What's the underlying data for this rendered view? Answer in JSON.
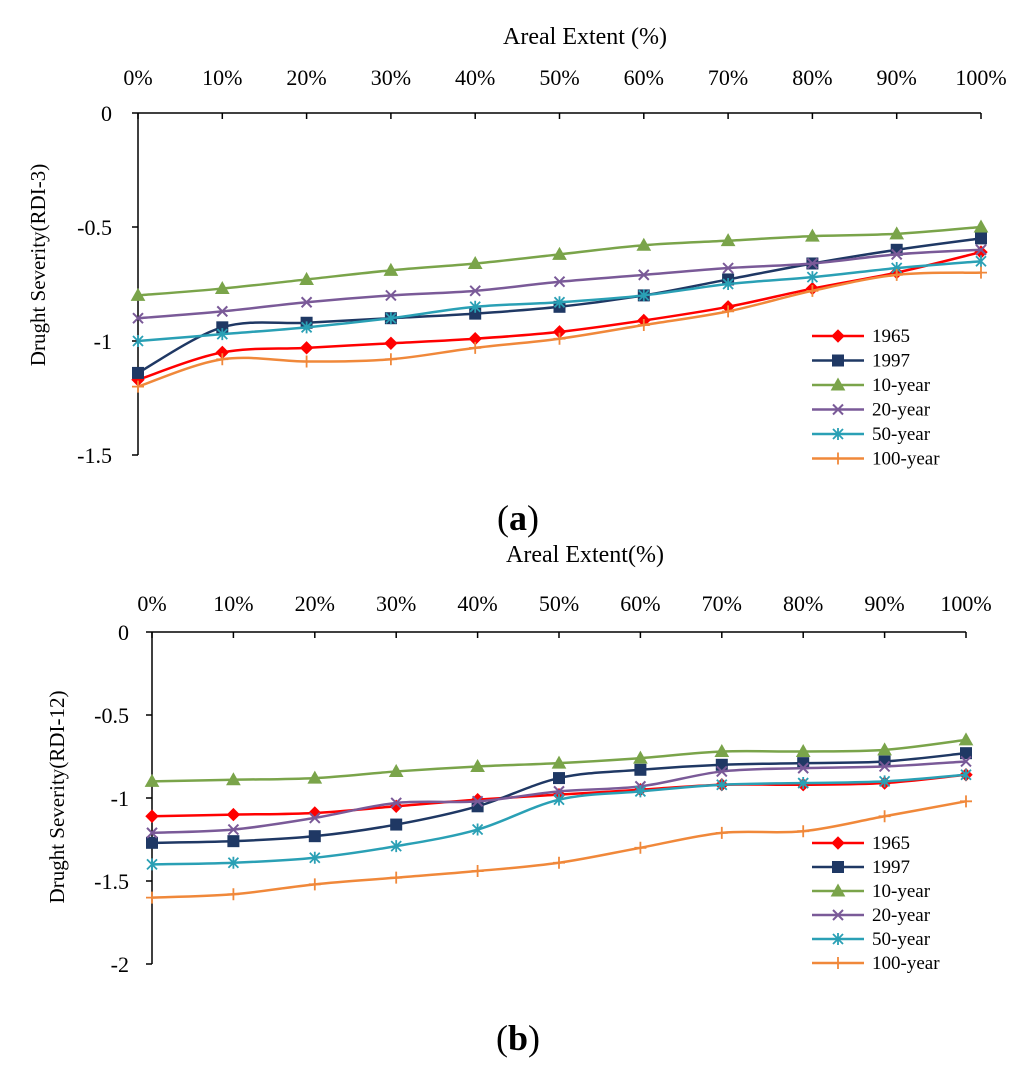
{
  "chart_data": [
    {
      "type": "line",
      "panel_label": "a",
      "title": "",
      "xlabel": "Areal Extent (%)",
      "ylabel": "Drught Severity(RDI-3)",
      "x_axis_position": "top",
      "categories": [
        "0%",
        "10%",
        "20%",
        "30%",
        "40%",
        "50%",
        "60%",
        "70%",
        "80%",
        "90%",
        "100%"
      ],
      "yticks": [
        "0",
        "-0.5",
        "-1",
        "-1.5"
      ],
      "ylim": [
        -1.5,
        0
      ],
      "grid": false,
      "legend_position": "bottom-right",
      "series": [
        {
          "name": "1965",
          "color": "#ff0000",
          "marker": "diamond",
          "values": [
            -1.17,
            -1.05,
            -1.03,
            -1.01,
            -0.99,
            -0.96,
            -0.91,
            -0.85,
            -0.77,
            -0.7,
            -0.61
          ]
        },
        {
          "name": "1997",
          "color": "#1f3864",
          "marker": "square",
          "values": [
            -1.14,
            -0.94,
            -0.92,
            -0.9,
            -0.88,
            -0.85,
            -0.8,
            -0.73,
            -0.66,
            -0.6,
            -0.55
          ]
        },
        {
          "name": "10-year",
          "color": "#7aa44a",
          "marker": "triangle",
          "values": [
            -0.8,
            -0.77,
            -0.73,
            -0.69,
            -0.66,
            -0.62,
            -0.58,
            -0.56,
            -0.54,
            -0.53,
            -0.5
          ]
        },
        {
          "name": "20-year",
          "color": "#7a5a98",
          "marker": "x",
          "values": [
            -0.9,
            -0.87,
            -0.83,
            -0.8,
            -0.78,
            -0.74,
            -0.71,
            -0.68,
            -0.66,
            -0.62,
            -0.6
          ]
        },
        {
          "name": "50-year",
          "color": "#2aa0b5",
          "marker": "asterisk",
          "values": [
            -1.0,
            -0.97,
            -0.94,
            -0.9,
            -0.85,
            -0.83,
            -0.8,
            -0.75,
            -0.72,
            -0.68,
            -0.65
          ]
        },
        {
          "name": "100-year",
          "color": "#f0883a",
          "marker": "plus",
          "values": [
            -1.2,
            -1.08,
            -1.09,
            -1.08,
            -1.03,
            -0.99,
            -0.93,
            -0.87,
            -0.78,
            -0.71,
            -0.7
          ]
        }
      ]
    },
    {
      "type": "line",
      "panel_label": "b",
      "title": "",
      "xlabel": "Areal Extent(%)",
      "ylabel": "Drught Severity(RDI-12)",
      "x_axis_position": "top",
      "categories": [
        "0%",
        "10%",
        "20%",
        "30%",
        "40%",
        "50%",
        "60%",
        "70%",
        "80%",
        "90%",
        "100%"
      ],
      "yticks": [
        "0",
        "-0.5",
        "-1",
        "-1.5",
        "-2"
      ],
      "ylim": [
        -2,
        0
      ],
      "grid": false,
      "legend_position": "bottom-right",
      "series": [
        {
          "name": "1965",
          "color": "#ff0000",
          "marker": "diamond",
          "values": [
            -1.11,
            -1.1,
            -1.09,
            -1.05,
            -1.01,
            -0.98,
            -0.95,
            -0.92,
            -0.92,
            -0.91,
            -0.86
          ]
        },
        {
          "name": "1997",
          "color": "#1f3864",
          "marker": "square",
          "values": [
            -1.27,
            -1.26,
            -1.23,
            -1.16,
            -1.05,
            -0.88,
            -0.83,
            -0.8,
            -0.79,
            -0.78,
            -0.73
          ]
        },
        {
          "name": "10-year",
          "color": "#7aa44a",
          "marker": "triangle",
          "values": [
            -0.9,
            -0.89,
            -0.88,
            -0.84,
            -0.81,
            -0.79,
            -0.76,
            -0.72,
            -0.72,
            -0.71,
            -0.65
          ]
        },
        {
          "name": "20-year",
          "color": "#7a5a98",
          "marker": "x",
          "values": [
            -1.21,
            -1.19,
            -1.12,
            -1.03,
            -1.02,
            -0.96,
            -0.93,
            -0.84,
            -0.82,
            -0.81,
            -0.78
          ]
        },
        {
          "name": "50-year",
          "color": "#2aa0b5",
          "marker": "asterisk",
          "values": [
            -1.4,
            -1.39,
            -1.36,
            -1.29,
            -1.19,
            -1.01,
            -0.96,
            -0.92,
            -0.91,
            -0.9,
            -0.86
          ]
        },
        {
          "name": "100-year",
          "color": "#f0883a",
          "marker": "plus",
          "values": [
            -1.6,
            -1.58,
            -1.52,
            -1.48,
            -1.44,
            -1.39,
            -1.3,
            -1.21,
            -1.2,
            -1.11,
            -1.02
          ]
        }
      ]
    }
  ]
}
